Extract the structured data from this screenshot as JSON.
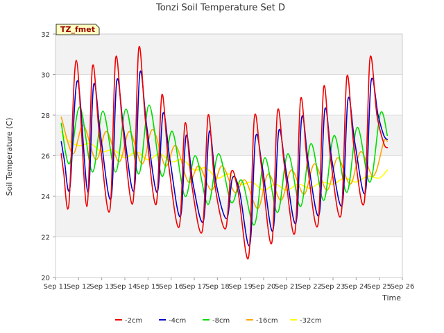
{
  "chart_data": {
    "type": "line",
    "title": "Tonzi Soil Temperature Set D",
    "xlabel": "Time",
    "ylabel": "Soil Temperature (C)",
    "xlim": [
      11,
      26
    ],
    "ylim": [
      20,
      32
    ],
    "x_ticks": [
      11,
      12,
      13,
      14,
      15,
      16,
      17,
      18,
      19,
      20,
      21,
      22,
      23,
      24,
      25,
      26
    ],
    "x_tick_labels": [
      "Sep 11",
      "Sep 12",
      "Sep 13",
      "Sep 14",
      "Sep 15",
      "Sep 16",
      "Sep 17",
      "Sep 18",
      "Sep 19",
      "Sep 20",
      "Sep 21",
      "Sep 22",
      "Sep 23",
      "Sep 24",
      "Sep 25",
      "Sep 26"
    ],
    "y_ticks": [
      20,
      22,
      24,
      26,
      28,
      30,
      32
    ],
    "y_tick_labels": [
      "20",
      "22",
      "24",
      "26",
      "28",
      "30",
      "32"
    ],
    "grid": true,
    "legend_position": "bottom",
    "annotation": "TZ_fmet",
    "series": [
      {
        "name": "-2cm",
        "color": "#ee0000",
        "x": [
          11.25,
          11.35,
          11.58,
          11.9,
          12.35,
          12.6,
          12.9,
          13.35,
          13.6,
          13.9,
          14.35,
          14.6,
          14.9,
          15.35,
          15.6,
          15.9,
          16.35,
          16.6,
          16.9,
          17.35,
          17.6,
          17.9,
          18.35,
          18.6,
          18.9,
          19.35,
          19.6,
          19.9,
          20.35,
          20.6,
          20.9,
          21.35,
          21.6,
          21.9,
          22.35,
          22.6,
          22.9,
          23.35,
          23.6,
          23.9,
          24.35,
          24.6,
          24.9,
          25.2,
          25.35
        ],
        "y": [
          26.1,
          25.2,
          23.6,
          30.7,
          23.5,
          30.4,
          27.0,
          23.3,
          30.8,
          27.5,
          23.7,
          31.3,
          27.6,
          23.6,
          29.0,
          25.5,
          22.5,
          27.6,
          24.5,
          22.3,
          28.0,
          24.5,
          22.4,
          25.2,
          24.2,
          21.0,
          27.9,
          25.5,
          21.7,
          28.2,
          25.5,
          22.2,
          28.8,
          25.5,
          22.6,
          29.4,
          25.8,
          23.1,
          29.9,
          26.5,
          23.7,
          30.8,
          28.0,
          26.6,
          26.4
        ]
      },
      {
        "name": "-4cm",
        "color": "#0000cc",
        "x": [
          11.25,
          11.38,
          11.62,
          11.95,
          12.4,
          12.65,
          12.95,
          13.4,
          13.65,
          13.95,
          14.4,
          14.65,
          14.95,
          15.4,
          15.65,
          15.95,
          16.4,
          16.65,
          16.95,
          17.4,
          17.65,
          17.95,
          18.4,
          18.65,
          18.95,
          19.4,
          19.65,
          19.95,
          20.4,
          20.65,
          20.95,
          21.4,
          21.65,
          21.95,
          22.4,
          22.65,
          22.95,
          23.4,
          23.65,
          23.95,
          24.4,
          24.65,
          24.95,
          25.2,
          25.35
        ],
        "y": [
          26.7,
          25.8,
          24.4,
          29.7,
          24.2,
          29.5,
          27.0,
          23.9,
          29.7,
          27.3,
          24.3,
          30.1,
          27.4,
          24.2,
          28.1,
          25.8,
          23.0,
          27.0,
          24.6,
          22.8,
          27.2,
          24.6,
          22.9,
          24.9,
          24.3,
          21.6,
          26.9,
          25.4,
          22.3,
          27.2,
          25.4,
          22.7,
          27.9,
          25.5,
          23.1,
          28.3,
          25.8,
          23.6,
          28.8,
          26.6,
          24.2,
          29.7,
          28.0,
          27.0,
          26.8
        ]
      },
      {
        "name": "-8cm",
        "color": "#00dd00",
        "x": [
          11.25,
          11.6,
          12.05,
          12.6,
          13.05,
          13.6,
          14.05,
          14.6,
          15.05,
          15.6,
          16.05,
          16.6,
          17.05,
          17.6,
          18.05,
          18.6,
          19.05,
          19.6,
          20.05,
          20.6,
          21.05,
          21.6,
          22.05,
          22.6,
          23.05,
          23.6,
          24.05,
          24.6,
          25.05,
          25.35
        ],
        "y": [
          27.6,
          25.6,
          28.4,
          25.2,
          28.2,
          25.2,
          28.3,
          25.1,
          28.5,
          25.0,
          27.2,
          24.0,
          26.0,
          23.6,
          26.1,
          23.7,
          24.8,
          22.6,
          25.9,
          23.2,
          26.1,
          23.5,
          26.6,
          23.8,
          27.0,
          24.2,
          27.4,
          24.7,
          28.1,
          27.0
        ]
      },
      {
        "name": "-16cm",
        "color": "#ffa500",
        "x": [
          11.25,
          11.75,
          12.2,
          12.75,
          13.2,
          13.75,
          14.2,
          14.75,
          15.2,
          15.75,
          16.2,
          16.75,
          17.2,
          17.75,
          18.2,
          18.75,
          19.2,
          19.75,
          20.2,
          20.75,
          21.2,
          21.75,
          22.2,
          22.75,
          23.2,
          23.75,
          24.2,
          24.75,
          25.2,
          25.35
        ],
        "y": [
          27.9,
          26.1,
          27.5,
          25.8,
          27.2,
          25.7,
          27.2,
          25.6,
          27.3,
          25.5,
          26.5,
          24.7,
          25.5,
          24.3,
          25.5,
          24.2,
          24.8,
          23.4,
          25.1,
          23.8,
          25.3,
          24.1,
          25.6,
          24.3,
          25.9,
          24.6,
          26.2,
          25.0,
          26.7,
          26.7
        ]
      },
      {
        "name": "-32cm",
        "color": "#ffff00",
        "x": [
          11.25,
          11.5,
          12.0,
          12.5,
          13.0,
          13.5,
          14.0,
          14.5,
          15.0,
          15.5,
          16.0,
          16.5,
          17.0,
          17.5,
          18.0,
          18.5,
          19.0,
          19.5,
          20.0,
          20.5,
          21.0,
          21.5,
          22.0,
          22.5,
          23.0,
          23.5,
          24.0,
          24.5,
          25.0,
          25.35
        ],
        "y": [
          27.2,
          26.8,
          26.5,
          26.6,
          26.2,
          26.3,
          25.9,
          26.2,
          25.8,
          26.1,
          25.7,
          25.8,
          25.3,
          25.4,
          24.9,
          25.1,
          24.6,
          24.7,
          24.3,
          24.6,
          24.3,
          24.6,
          24.4,
          24.7,
          24.6,
          24.9,
          24.7,
          25.0,
          24.9,
          25.3
        ]
      }
    ]
  }
}
